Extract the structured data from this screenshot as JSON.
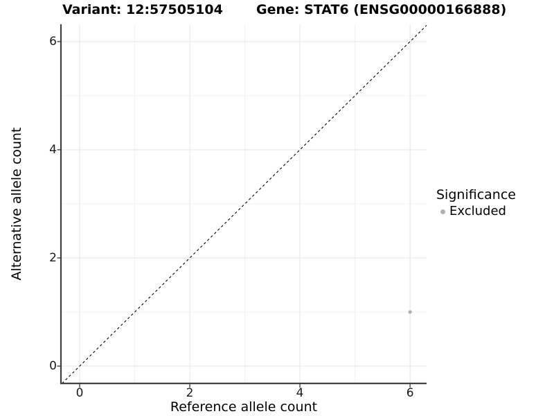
{
  "chart_data": {
    "type": "scatter",
    "title_left": "Variant: 12:57505104",
    "title_right": "Gene: STAT6 (ENSG00000166888)",
    "xlabel": "Reference allele count",
    "ylabel": "Alternative allele count",
    "xlim": [
      -0.34,
      6.3
    ],
    "ylim": [
      -0.32,
      6.32
    ],
    "x_ticks": [
      0,
      2,
      4,
      6
    ],
    "y_ticks": [
      0,
      2,
      4,
      6
    ],
    "x_minor_gridlines": [
      1,
      3,
      5
    ],
    "y_minor_gridlines": [
      1,
      3,
      5
    ],
    "grid": "major and minor light-gray gridlines on white panel",
    "legend": {
      "title": "Significance",
      "position": "right",
      "entries": [
        {
          "label": "Excluded",
          "color": "#b0b0b0"
        }
      ]
    },
    "series": [
      {
        "name": "Excluded",
        "color": "#b0b0b0",
        "points": [
          {
            "x": 6,
            "y": 1
          }
        ]
      }
    ],
    "reference_line": {
      "equation": "y = x",
      "linetype": "dashed",
      "color": "#000000"
    }
  },
  "colors": {
    "background": "#ffffff",
    "grid_major": "#e9e9e9",
    "grid_minor": "#f1f1f1",
    "axis_line": "#404040",
    "tick_text": "#1a1a1a"
  }
}
